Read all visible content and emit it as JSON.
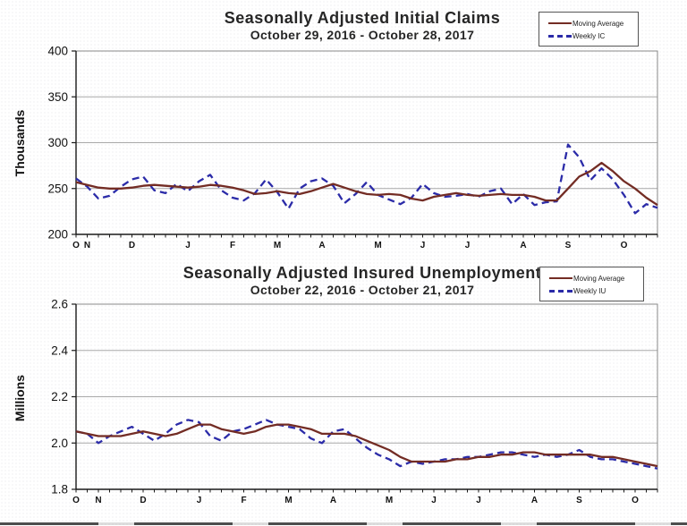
{
  "page": {
    "background": "#ffffff",
    "accent_colors": {
      "moving_average": "#732c24",
      "weekly": "#2b2ba8",
      "grid": "#a8a8a8",
      "axis": "#1a1a1a",
      "border": "#8a8a8a"
    }
  },
  "chart_data": [
    {
      "type": "line",
      "title": "Seasonally Adjusted Initial Claims",
      "subtitle": "October 29, 2016  -  October 28, 2017",
      "ylabel": "Thousands",
      "xlabel": "",
      "ylim": [
        200,
        400
      ],
      "yticks": [
        200,
        250,
        300,
        350,
        400
      ],
      "ytick_decimals": 0,
      "grid": true,
      "legend_position": "top-right",
      "n_weeks": 53,
      "month_labels": [
        {
          "label": "O",
          "week": 0
        },
        {
          "label": "N",
          "week": 1
        },
        {
          "label": "D",
          "week": 5
        },
        {
          "label": "J",
          "week": 10
        },
        {
          "label": "F",
          "week": 14
        },
        {
          "label": "M",
          "week": 18
        },
        {
          "label": "A",
          "week": 22
        },
        {
          "label": "M",
          "week": 27
        },
        {
          "label": "J",
          "week": 31
        },
        {
          "label": "J",
          "week": 35
        },
        {
          "label": "A",
          "week": 40
        },
        {
          "label": "S",
          "week": 44
        },
        {
          "label": "O",
          "week": 49
        }
      ],
      "series": [
        {
          "name": "Moving Average",
          "style": "solid",
          "color": "#732c24",
          "values": [
            257,
            254,
            251,
            250,
            250,
            251,
            253,
            254,
            253,
            252,
            251,
            252,
            254,
            253,
            251,
            248,
            244,
            245,
            247,
            245,
            244,
            247,
            251,
            255,
            251,
            247,
            244,
            243,
            244,
            243,
            239,
            237,
            241,
            243,
            245,
            243,
            242,
            243,
            244,
            243,
            243,
            241,
            237,
            237,
            250,
            263,
            269,
            278,
            269,
            258,
            250,
            240,
            232
          ]
        },
        {
          "name": "Weekly IC",
          "style": "dashed",
          "color": "#2b2ba8",
          "values": [
            261,
            252,
            239,
            242,
            252,
            260,
            263,
            248,
            245,
            255,
            247,
            258,
            265,
            248,
            240,
            237,
            245,
            260,
            246,
            228,
            250,
            258,
            261,
            253,
            234,
            244,
            257,
            243,
            238,
            233,
            240,
            255,
            245,
            241,
            242,
            244,
            241,
            247,
            250,
            233,
            244,
            232,
            235,
            236,
            298,
            284,
            259,
            272,
            260,
            243,
            223,
            233,
            229
          ]
        }
      ]
    },
    {
      "type": "line",
      "title": "Seasonally Adjusted Insured Unemployment",
      "subtitle": "October 22, 2016  -  October 21, 2017",
      "ylabel": "Millions",
      "xlabel": "",
      "ylim": [
        1.8,
        2.6
      ],
      "yticks": [
        1.8,
        2.0,
        2.2,
        2.4,
        2.6
      ],
      "ytick_decimals": 1,
      "grid": true,
      "legend_position": "top-right",
      "n_weeks": 53,
      "month_labels": [
        {
          "label": "O",
          "week": 0
        },
        {
          "label": "N",
          "week": 2
        },
        {
          "label": "D",
          "week": 6
        },
        {
          "label": "J",
          "week": 11
        },
        {
          "label": "F",
          "week": 15
        },
        {
          "label": "M",
          "week": 19
        },
        {
          "label": "A",
          "week": 23
        },
        {
          "label": "M",
          "week": 28
        },
        {
          "label": "J",
          "week": 32
        },
        {
          "label": "J",
          "week": 36
        },
        {
          "label": "A",
          "week": 41
        },
        {
          "label": "S",
          "week": 45
        },
        {
          "label": "O",
          "week": 50
        }
      ],
      "series": [
        {
          "name": "Moving Average",
          "style": "solid",
          "color": "#732c24",
          "values": [
            2.05,
            2.04,
            2.03,
            2.03,
            2.03,
            2.04,
            2.05,
            2.04,
            2.03,
            2.04,
            2.06,
            2.08,
            2.08,
            2.06,
            2.05,
            2.04,
            2.05,
            2.07,
            2.08,
            2.08,
            2.07,
            2.06,
            2.04,
            2.04,
            2.04,
            2.03,
            2.01,
            1.99,
            1.97,
            1.94,
            1.92,
            1.92,
            1.92,
            1.92,
            1.93,
            1.93,
            1.94,
            1.94,
            1.95,
            1.95,
            1.96,
            1.96,
            1.95,
            1.95,
            1.95,
            1.95,
            1.95,
            1.94,
            1.94,
            1.93,
            1.92,
            1.91,
            1.9
          ]
        },
        {
          "name": "Weekly IU",
          "style": "dashed",
          "color": "#2b2ba8",
          "values": [
            2.05,
            2.04,
            2.0,
            2.03,
            2.05,
            2.07,
            2.04,
            2.01,
            2.04,
            2.08,
            2.1,
            2.09,
            2.03,
            2.01,
            2.05,
            2.06,
            2.08,
            2.1,
            2.08,
            2.07,
            2.06,
            2.02,
            2.0,
            2.05,
            2.06,
            2.02,
            1.98,
            1.95,
            1.93,
            1.9,
            1.92,
            1.91,
            1.92,
            1.93,
            1.93,
            1.94,
            1.94,
            1.95,
            1.96,
            1.96,
            1.95,
            1.94,
            1.95,
            1.94,
            1.95,
            1.97,
            1.94,
            1.93,
            1.93,
            1.92,
            1.91,
            1.9,
            1.89
          ]
        }
      ]
    }
  ]
}
